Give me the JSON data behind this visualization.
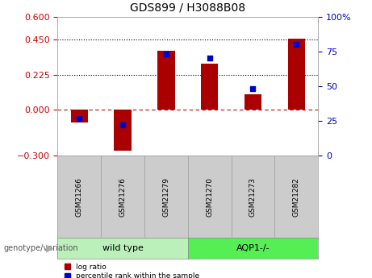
{
  "title": "GDS899 / H3088B08",
  "samples": [
    "GSM21266",
    "GSM21276",
    "GSM21279",
    "GSM21270",
    "GSM21273",
    "GSM21282"
  ],
  "log_ratios": [
    -0.085,
    -0.27,
    0.38,
    0.295,
    0.1,
    0.46
  ],
  "percentile_ranks": [
    27,
    22,
    73,
    70,
    48,
    80
  ],
  "groups": [
    {
      "label": "wild type",
      "indices": [
        0,
        1,
        2
      ],
      "color": "#bbf0bb"
    },
    {
      "label": "AQP1-/-",
      "indices": [
        3,
        4,
        5
      ],
      "color": "#55ee55"
    }
  ],
  "bar_color": "#aa0000",
  "dot_color": "#0000cc",
  "ylim_left": [
    -0.3,
    0.6
  ],
  "ylim_right": [
    0,
    100
  ],
  "yticks_left": [
    -0.3,
    0,
    0.225,
    0.45,
    0.6
  ],
  "yticks_right": [
    0,
    25,
    50,
    75,
    100
  ],
  "hlines": [
    0.225,
    0.45
  ],
  "zero_line_color": "#cc0000",
  "bg_color": "#ffffff",
  "plot_bg_color": "#ffffff",
  "xlabel_color": "#cc0000",
  "ylabel_right_color": "#0000cc",
  "genotype_label": "genotype/variation",
  "legend_logratio": "log ratio",
  "legend_percentile": "percentile rank within the sample",
  "sample_box_color": "#cccccc",
  "sample_box_edge": "#999999",
  "group_box_edge": "#888888"
}
